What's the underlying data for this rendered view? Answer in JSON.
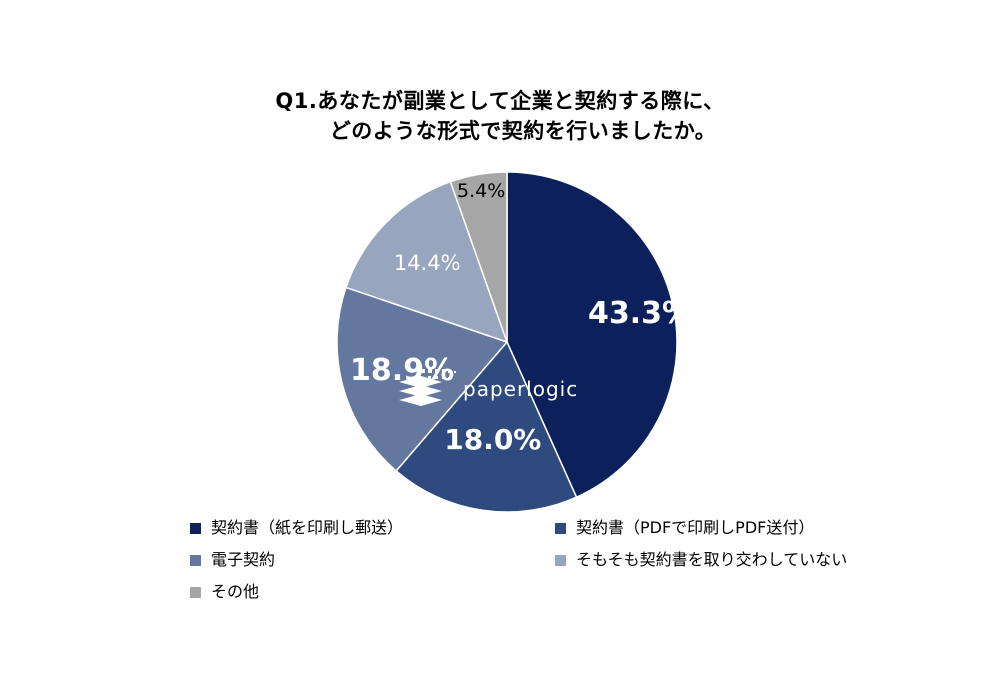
{
  "chart_data": {
    "type": "pie",
    "title_lines": [
      "Q1.あなたが副業として企業と契約する際に、",
      "どのような形式で契約を行いましたか。"
    ],
    "start_angle_deg": 0,
    "direction": "clockwise",
    "slices": [
      {
        "label": "契約書（紙を印刷し郵送）",
        "value": 43.3,
        "display": "43.3%",
        "color": "#0c205c",
        "label_color": "#ffffff",
        "label_weight": "bold"
      },
      {
        "label": "契約書（PDFで印刷しPDF送付）",
        "value": 18.0,
        "display": "18.0%",
        "color": "#2e4a7e",
        "label_color": "#ffffff",
        "label_weight": "bold"
      },
      {
        "label": "電子契約",
        "value": 18.9,
        "display": "18.9%",
        "color": "#63779f",
        "label_color": "#ffffff",
        "label_weight": "bold"
      },
      {
        "label": "そもそも契約書を取り交わしていない",
        "value": 14.4,
        "display": "14.4%",
        "color": "#97a5bf",
        "label_color": "#ffffff",
        "label_weight": "normal"
      },
      {
        "label": "その他",
        "value": 5.4,
        "display": "5.4%",
        "color": "#a6a6a6",
        "label_color": "#000000",
        "label_weight": "normal"
      }
    ],
    "legend_position": "bottom"
  },
  "watermark": {
    "text": "paperlogic",
    "text_color": "#ffffff"
  }
}
